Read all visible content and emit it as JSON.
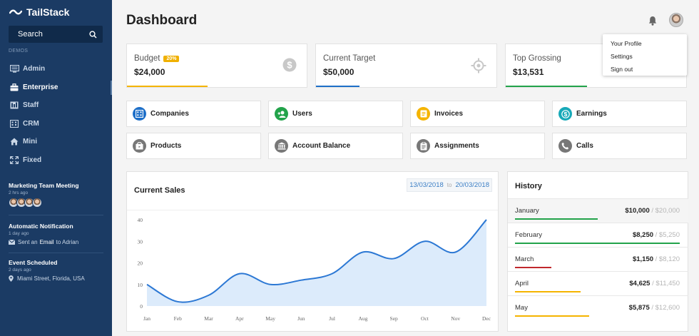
{
  "brand": {
    "name": "TailStack"
  },
  "search": {
    "label": "Search"
  },
  "sidebar": {
    "section_label": "DEMOS",
    "items": [
      {
        "label": "Admin",
        "icon": "monitor-icon",
        "active": false
      },
      {
        "label": "Enterprise",
        "icon": "briefcase-icon",
        "active": true
      },
      {
        "label": "Staff",
        "icon": "staff-icon",
        "active": false
      },
      {
        "label": "CRM",
        "icon": "building-icon",
        "active": false
      },
      {
        "label": "Mini",
        "icon": "home-icon",
        "active": false
      },
      {
        "label": "Fixed",
        "icon": "expand-icon",
        "active": false
      }
    ]
  },
  "feed": [
    {
      "title": "Marketing Team Meeting",
      "time": "2 hrs ago"
    },
    {
      "title": "Automatic Notification",
      "time": "1 day ago",
      "desc_pre": "Sent an",
      "desc_bold": "Email",
      "desc_post": "to Adrian"
    },
    {
      "title": "Event Scheduled",
      "time": "2 days ago",
      "desc": "Miami Street, Florida, USA"
    }
  ],
  "header": {
    "title": "Dashboard"
  },
  "user_menu": [
    "Your Profile",
    "Settings",
    "Sign out"
  ],
  "stats": [
    {
      "label": "Budget",
      "badge": "20%",
      "value": "$24,000",
      "color": "#f5b400",
      "progress": 0.45,
      "icon": "dollar-icon"
    },
    {
      "label": "Current Target",
      "value": "$50,000",
      "color": "#1e6fc8",
      "progress": 0.24,
      "icon": "target-icon"
    },
    {
      "label": "Top Grossing",
      "value": "$13,531",
      "color": "#22a34a",
      "progress": 0.45,
      "icon": "chart-icon"
    }
  ],
  "quick_actions": [
    {
      "label": "Companies",
      "color": "#1e6fc8",
      "icon": "building-icon"
    },
    {
      "label": "Users",
      "color": "#22a34a",
      "icon": "add-user-icon"
    },
    {
      "label": "Invoices",
      "color": "#f5b400",
      "icon": "invoice-icon"
    },
    {
      "label": "Earnings",
      "color": "#17a9b8",
      "icon": "dollar-icon"
    },
    {
      "label": "Products",
      "color": "#777777",
      "icon": "box-icon"
    },
    {
      "label": "Account Balance",
      "color": "#777777",
      "icon": "bank-icon"
    },
    {
      "label": "Assignments",
      "color": "#777777",
      "icon": "clipboard-icon"
    },
    {
      "label": "Calls",
      "color": "#777777",
      "icon": "phone-icon"
    }
  ],
  "sales": {
    "title": "Current Sales",
    "date_from": "13/03/2018",
    "date_to_label": "to",
    "date_to": "20/03/2018"
  },
  "chart_data": {
    "type": "area",
    "categories": [
      "Jan",
      "Feb",
      "Mar",
      "Apr",
      "May",
      "Jun",
      "Jul",
      "Aug",
      "Sep",
      "Oct",
      "Nov",
      "Dec"
    ],
    "values": [
      10,
      2,
      5,
      15,
      10,
      12,
      15,
      25,
      22,
      30,
      25,
      40
    ],
    "yticks": [
      0,
      10,
      20,
      30,
      40
    ],
    "ylim": [
      0,
      40
    ],
    "line_color": "#2c78d4",
    "fill_color": "#dcebfb",
    "grid": false
  },
  "history": {
    "title": "History",
    "rows": [
      {
        "month": "January",
        "value": "$10,000",
        "total": "$20,000",
        "progress": 0.5,
        "color": "#22a34a"
      },
      {
        "month": "February",
        "value": "$8,250",
        "total": "$5,250",
        "progress": 1.0,
        "color": "#22a34a"
      },
      {
        "month": "March",
        "value": "$1,150",
        "total": "$8,120",
        "progress": 0.22,
        "color": "#c0282d"
      },
      {
        "month": "April",
        "value": "$4,625",
        "total": "$11,450",
        "progress": 0.4,
        "color": "#f5b400"
      },
      {
        "month": "May",
        "value": "$5,875",
        "total": "$12,600",
        "progress": 0.45,
        "color": "#f5b400"
      }
    ]
  }
}
